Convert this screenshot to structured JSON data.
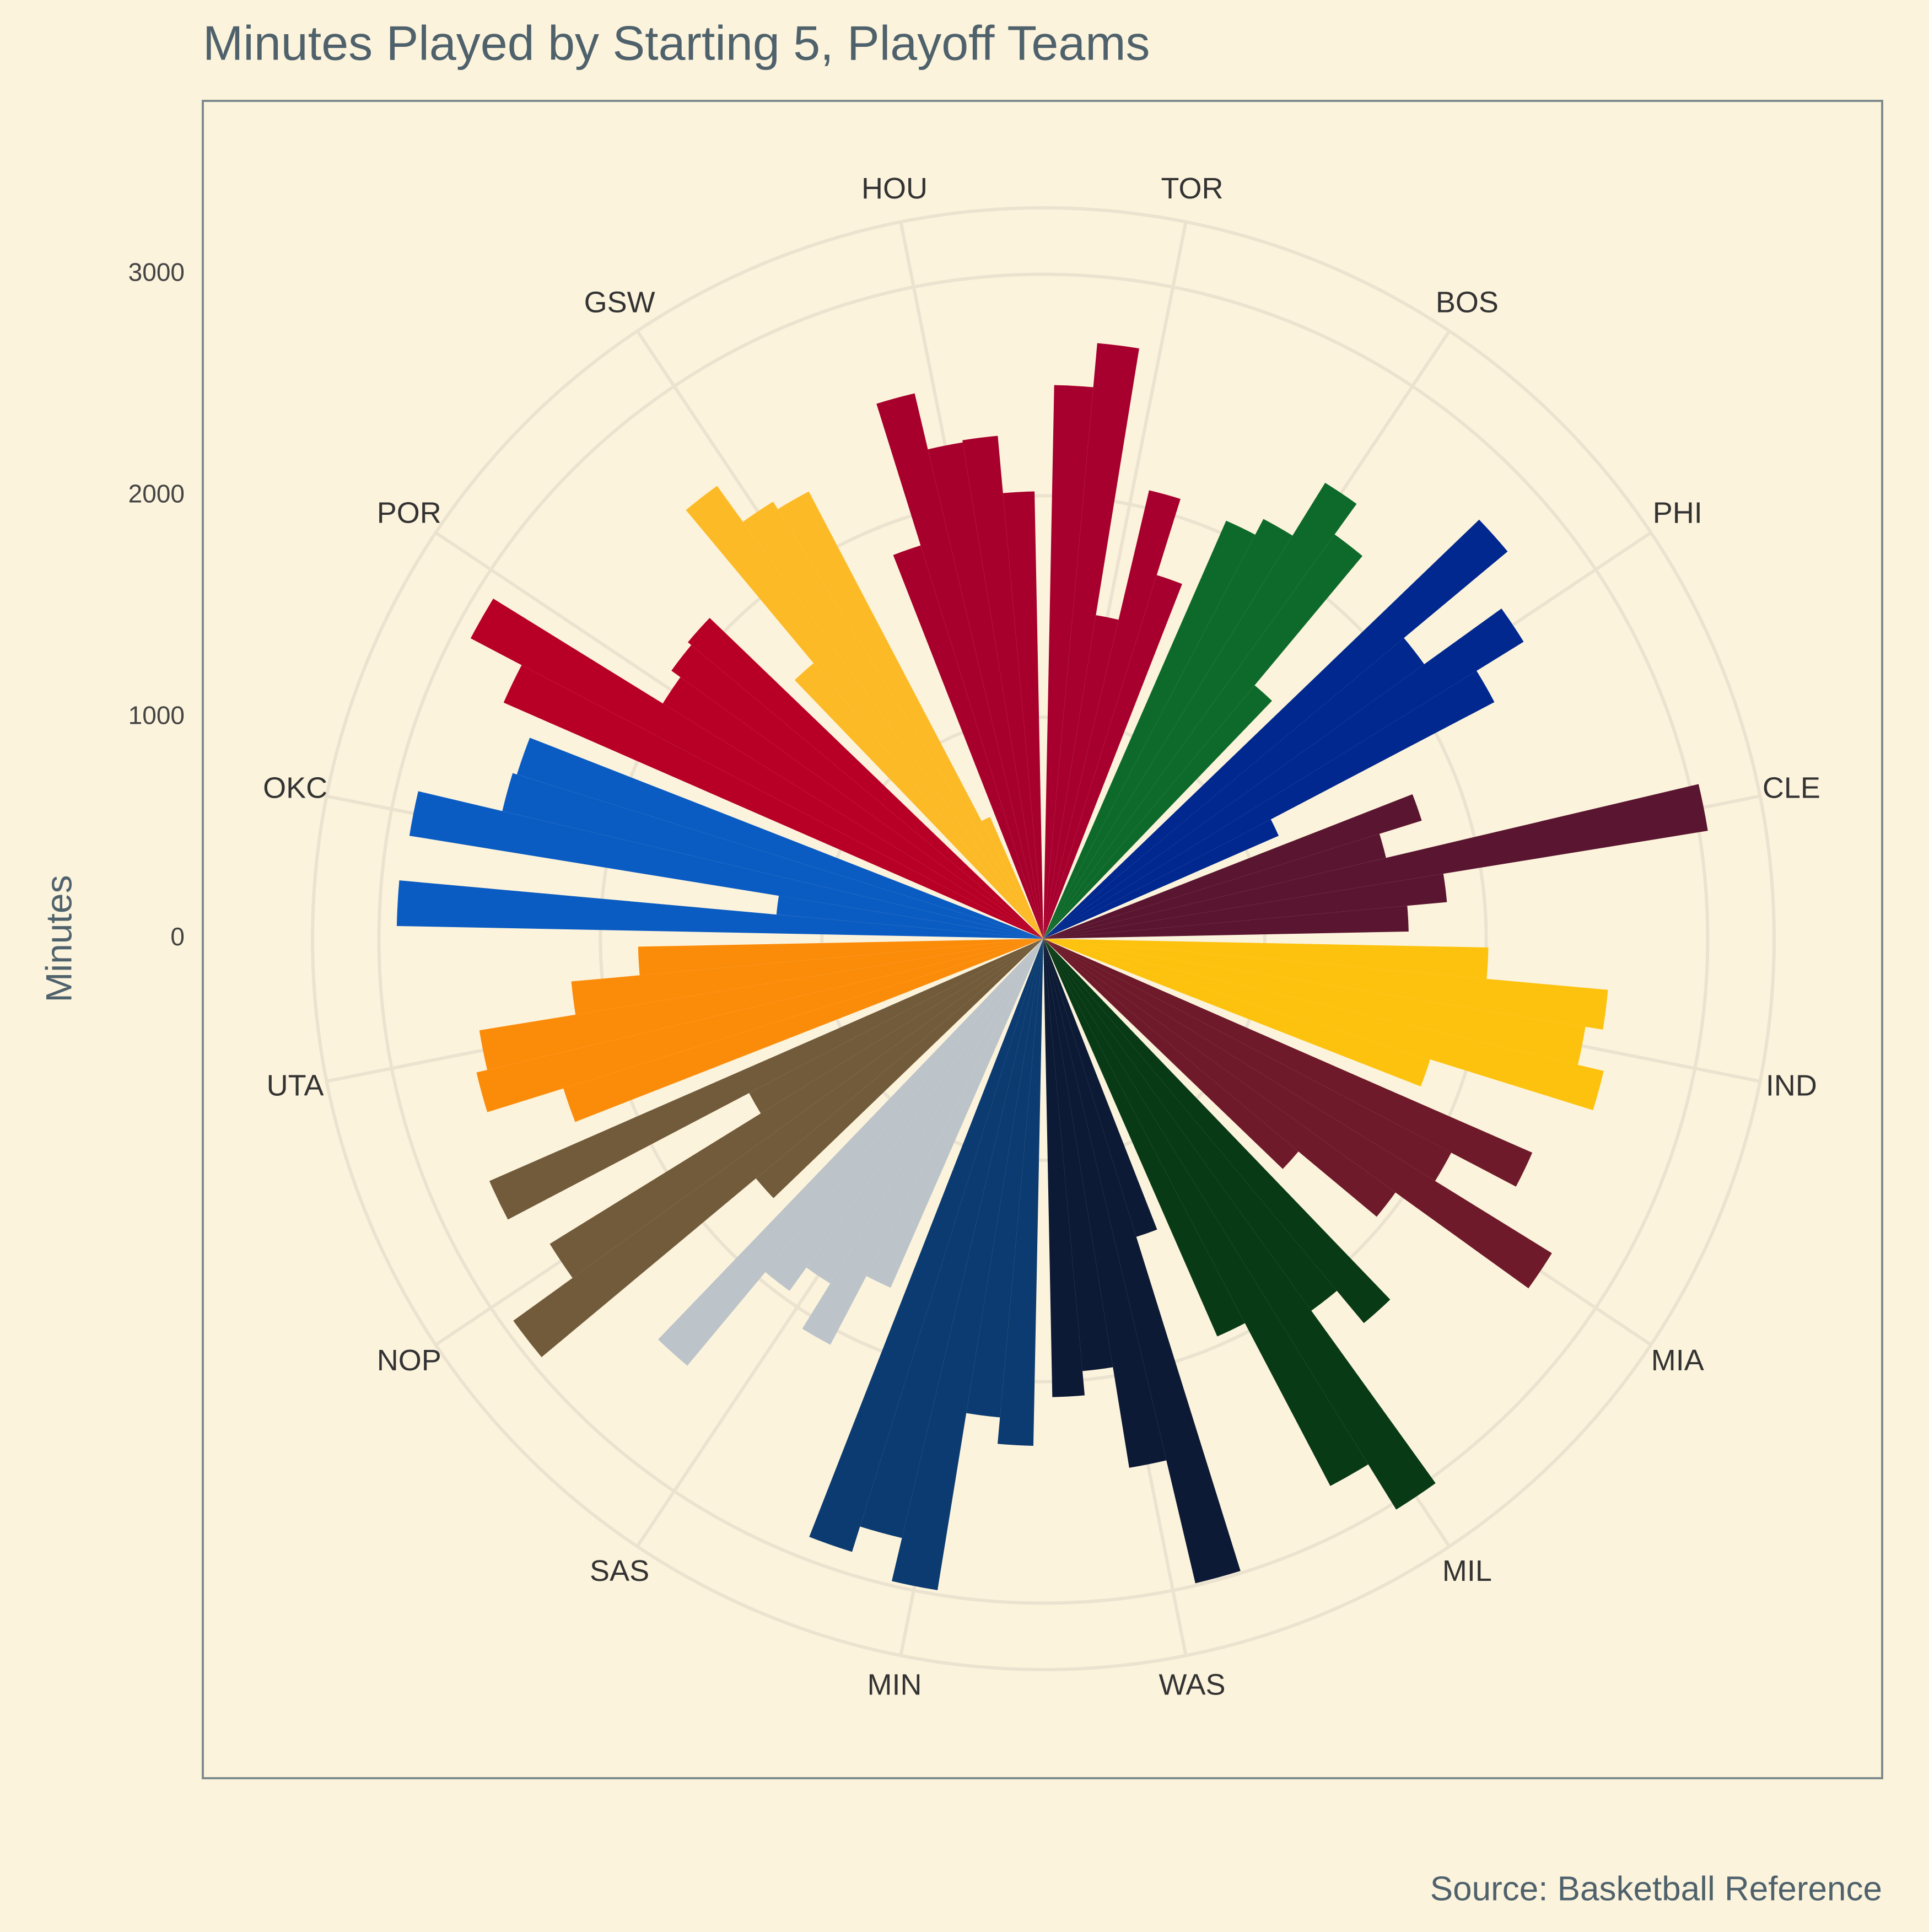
{
  "chart_data": {
    "type": "polar-bar",
    "title": "Minutes Played by Starting 5, Playoff Teams",
    "y_label": "Minutes",
    "source": "Source: Basketball Reference",
    "categories": [
      "TOR",
      "BOS",
      "PHI",
      "CLE",
      "IND",
      "MIA",
      "MIL",
      "WAS",
      "MIN",
      "SAS",
      "NOP",
      "UTA",
      "OKC",
      "POR",
      "GSW",
      "HOU"
    ],
    "colors": [
      "#a8002e",
      "#0e6a2b",
      "#00288f",
      "#5a1630",
      "#fdc20d",
      "#6e1a2a",
      "#083a16",
      "#0c1a35",
      "#0b3b70",
      "#bcc4ca",
      "#715b3a",
      "#fb8c0a",
      "#0b5cc2",
      "#b80026",
      "#fdba27",
      "#a8002c"
    ],
    "values": [
      [
        2500,
        2700,
        1480,
        2080,
        1720
      ],
      [
        2060,
        2140,
        2420,
        2250,
        1490
      ],
      [
        2730,
        2120,
        2550,
        2300,
        1160
      ],
      [
        1790,
        1590,
        3040,
        1830,
        1650
      ],
      [
        2010,
        2560,
        2480,
        2600,
        1830
      ],
      [
        2410,
        2080,
        2700,
        1960,
        1500
      ],
      [
        2260,
        2070,
        3030,
        2790,
        1960
      ],
      [
        1410,
        2990,
        2420,
        1960,
        2070
      ],
      [
        2290,
        2170,
        2980,
        2780,
        2900
      ],
      [
        1720,
        2070,
        1830,
        1960,
        2510
      ],
      [
        1690,
        2950,
        2620,
        1500,
        2730
      ],
      [
        2270,
        2630,
        2580,
        2140,
        1830
      ],
      [
        2920,
        1210,
        2900,
        2510,
        2490
      ],
      [
        2660,
        2920,
        2020,
        2070,
        2090
      ],
      [
        1620,
        2520,
        2320,
        2280,
        600
      ],
      [
        1860,
        2530,
        2270,
        2280,
        2020
      ]
    ],
    "ylim": [
      0,
      3300
    ],
    "yticks": [
      0,
      1000,
      2000,
      3000
    ],
    "grid": true
  }
}
